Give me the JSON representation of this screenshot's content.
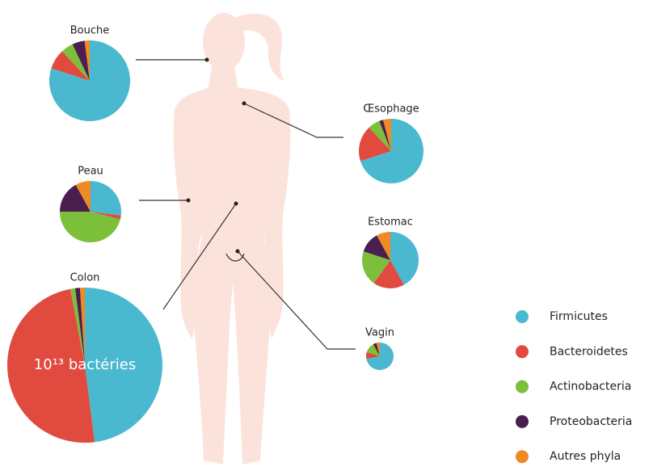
{
  "chart_data": [
    {
      "type": "pie",
      "title": "Bouche",
      "values": [
        80,
        8,
        5,
        5,
        2
      ]
    },
    {
      "type": "pie",
      "title": "Œsophage",
      "values": [
        70,
        18,
        6,
        2,
        4
      ]
    },
    {
      "type": "pie",
      "title": "Peau",
      "values": [
        27,
        2,
        46,
        17,
        8
      ]
    },
    {
      "type": "pie",
      "title": "Estomac",
      "values": [
        42,
        18,
        20,
        12,
        8
      ]
    },
    {
      "type": "pie",
      "title": "Colon",
      "values": [
        48,
        49,
        1,
        1,
        1
      ],
      "annotation": "10¹³ bactéries"
    },
    {
      "type": "pie",
      "title": "Vagin",
      "values": [
        72,
        8,
        12,
        4,
        4
      ]
    }
  ],
  "legend": {
    "categories": [
      "Firmicutes",
      "Bacteroidetes",
      "Actinobacteria",
      "Proteobacteria",
      "Autres phyla"
    ],
    "colors": [
      "#4ab8cf",
      "#e04a3f",
      "#7cbf3a",
      "#4a1f4f",
      "#f08a24"
    ]
  }
}
